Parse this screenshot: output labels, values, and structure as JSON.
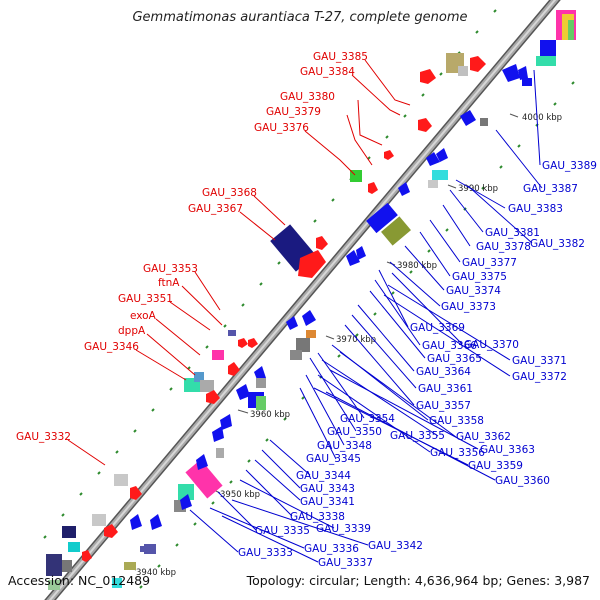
{
  "title": "Gemmatimonas aurantiaca T-27, complete genome",
  "footer": {
    "accession": "Accession: NC_012489",
    "summary": "Topology: circular; Length: 4,636,964 bp; Genes: 3,987"
  },
  "colors": {
    "forward_label": "#e00000",
    "reverse_label": "#0000d0",
    "forward_gene": "#ff1a1a",
    "reverse_gene": "#1111ee",
    "backbone": "#909090"
  },
  "kbp_markers": [
    "3940 kbp",
    "3950 kbp",
    "3960 kbp",
    "3970 kbp",
    "3980 kbp",
    "3990 kbp",
    "4000 kbp"
  ],
  "labels_left": [
    "GAU_3385",
    "GAU_3384",
    "GAU_3380",
    "GAU_3379",
    "GAU_3376",
    "GAU_3368",
    "GAU_3367",
    "GAU_3353",
    "ftnA",
    "GAU_3351",
    "exoA",
    "dppA",
    "GAU_3346",
    "GAU_3332"
  ],
  "labels_right": [
    "GAU_3389",
    "GAU_3387",
    "GAU_3383",
    "GAU_3381",
    "GAU_3382",
    "GAU_3378",
    "GAU_3377",
    "GAU_3375",
    "GAU_3374",
    "GAU_3373",
    "GAU_3369",
    "GAU_3370",
    "GAU_3366",
    "GAU_3371",
    "GAU_3365",
    "GAU_3372",
    "GAU_3364",
    "GAU_3361",
    "GAU_3357",
    "GAU_3354",
    "GAU_3358",
    "GAU_3350",
    "GAU_3355",
    "GAU_3362",
    "GAU_3348",
    "GAU_3356",
    "GAU_3363",
    "GAU_3345",
    "GAU_3359",
    "GAU_3344",
    "GAU_3360",
    "GAU_3343",
    "GAU_3341",
    "GAU_3338",
    "GAU_3339",
    "GAU_3335",
    "GAU_3342",
    "GAU_3336",
    "GAU_3333",
    "GAU_3337"
  ]
}
